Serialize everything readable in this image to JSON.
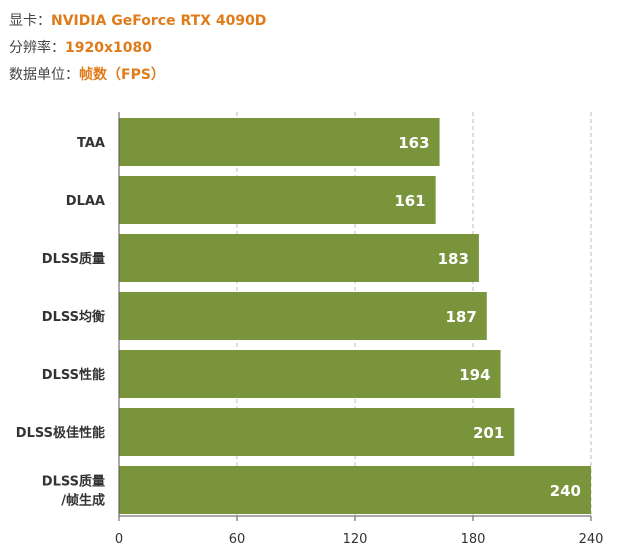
{
  "meta": {
    "card_label": "显卡：",
    "card_value": "NVIDIA GeForce RTX 4090D",
    "res_label": "分辨率：",
    "res_value": "1920x1080",
    "unit_label": "数据单位：",
    "unit_value": "帧数（FPS）"
  },
  "chart_data": {
    "type": "bar",
    "orientation": "horizontal",
    "categories": [
      [
        "TAA"
      ],
      [
        "DLAA"
      ],
      [
        "DLSS质量"
      ],
      [
        "DLSS均衡"
      ],
      [
        "DLSS性能"
      ],
      [
        "DLSS极佳性能"
      ],
      [
        "DLSS质量",
        "/帧生成"
      ]
    ],
    "values": [
      163,
      161,
      183,
      187,
      194,
      201,
      240
    ],
    "xlim": [
      0,
      240
    ],
    "xticks": [
      0,
      60,
      120,
      180,
      240
    ],
    "grid": true,
    "bar_color": "#7a943c",
    "title": "",
    "xlabel": "",
    "ylabel": ""
  }
}
